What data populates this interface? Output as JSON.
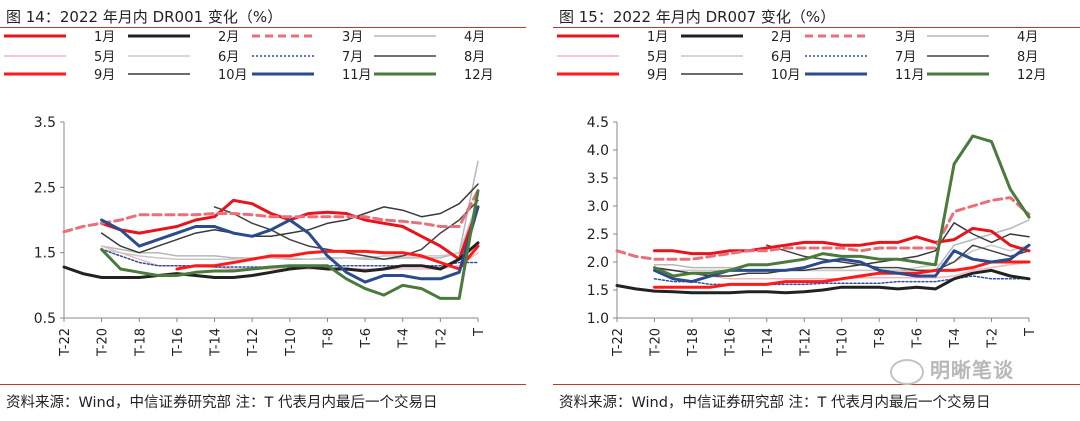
{
  "chart_data": [
    {
      "type": "line",
      "title": "图 14：2022 年月内 DR001 变化（%）",
      "source": "资料来源：Wind，中信证券研究部 注：T 代表月内最后一个交易日",
      "x": [
        "T-22",
        "T-21",
        "T-20",
        "T-19",
        "T-18",
        "T-17",
        "T-16",
        "T-15",
        "T-14",
        "T-13",
        "T-12",
        "T-11",
        "T-10",
        "T-9",
        "T-8",
        "T-7",
        "T-6",
        "T-5",
        "T-4",
        "T-3",
        "T-2",
        "T-1",
        "T"
      ],
      "xticks": [
        "T-22",
        "T-20",
        "T-18",
        "T-16",
        "T-14",
        "T-12",
        "T-10",
        "T-8",
        "T-6",
        "T-4",
        "T-2",
        "T"
      ],
      "ylim": [
        0.5,
        3.5
      ],
      "yticks": [
        "0.5",
        "1.5",
        "2.5",
        "3.5"
      ],
      "legend_placement": "top",
      "series": [
        {
          "name": "1月",
          "color": "#e8141b",
          "width": 3,
          "dash": "",
          "values": [
            null,
            null,
            1.95,
            1.85,
            1.8,
            1.85,
            1.9,
            2.0,
            2.05,
            2.3,
            2.25,
            2.1,
            2.0,
            2.1,
            2.12,
            2.1,
            2.0,
            1.95,
            1.9,
            1.75,
            1.6,
            1.4,
            2.2
          ]
        },
        {
          "name": "2月",
          "color": "#222222",
          "width": 3,
          "dash": "",
          "values": [
            1.28,
            1.18,
            1.12,
            1.12,
            1.12,
            1.15,
            1.18,
            1.15,
            1.12,
            1.12,
            1.15,
            1.2,
            1.25,
            1.28,
            1.25,
            1.25,
            1.22,
            1.25,
            1.3,
            1.3,
            1.25,
            1.4,
            1.65
          ]
        },
        {
          "name": "3月",
          "color": "#e8707a",
          "width": 3,
          "dash": "8,5",
          "values": [
            1.82,
            1.9,
            1.95,
            2.0,
            2.08,
            2.08,
            2.08,
            2.08,
            2.1,
            2.1,
            2.08,
            2.05,
            2.05,
            2.05,
            2.05,
            2.05,
            2.05,
            2.0,
            1.98,
            1.95,
            1.9,
            1.9,
            2.45
          ]
        },
        {
          "name": "4月",
          "color": "#b7b7b7",
          "width": 1.5,
          "dash": "",
          "values": [
            null,
            null,
            1.6,
            1.55,
            1.5,
            1.5,
            1.45,
            1.45,
            1.45,
            1.42,
            1.42,
            1.42,
            1.4,
            1.4,
            1.42,
            1.42,
            1.4,
            1.4,
            1.42,
            1.42,
            1.42,
            1.5,
            2.9
          ]
        },
        {
          "name": "5月",
          "color": "#f4b6bf",
          "width": 1.5,
          "dash": "",
          "values": [
            null,
            null,
            1.6,
            1.5,
            1.4,
            1.3,
            1.3,
            1.28,
            1.28,
            1.25,
            1.25,
            1.25,
            1.25,
            1.25,
            1.25,
            1.25,
            1.25,
            1.25,
            1.25,
            1.25,
            1.25,
            1.3,
            1.5
          ]
        },
        {
          "name": "6月",
          "color": "#c8c8c8",
          "width": 1.5,
          "dash": "",
          "values": [
            null,
            null,
            1.55,
            1.5,
            1.45,
            1.42,
            1.4,
            1.4,
            1.4,
            1.4,
            1.42,
            1.42,
            1.42,
            1.4,
            1.4,
            1.42,
            1.42,
            1.45,
            1.45,
            1.45,
            1.45,
            1.5,
            2.3
          ]
        },
        {
          "name": "7月",
          "color": "#2f4f9f",
          "width": 1.5,
          "dash": "2,2",
          "values": [
            null,
            null,
            1.55,
            1.45,
            1.35,
            1.3,
            1.3,
            1.3,
            1.28,
            1.28,
            1.28,
            1.28,
            1.28,
            1.28,
            1.3,
            1.3,
            1.3,
            1.3,
            1.3,
            1.3,
            1.3,
            1.35,
            1.35
          ]
        },
        {
          "name": "8月",
          "color": "#444444",
          "width": 1.5,
          "dash": "",
          "values": [
            null,
            null,
            null,
            null,
            null,
            null,
            null,
            null,
            2.2,
            2.1,
            1.95,
            1.85,
            1.7,
            1.6,
            1.55,
            1.5,
            1.45,
            1.4,
            1.45,
            1.55,
            1.8,
            2.0,
            2.3
          ]
        },
        {
          "name": "9月",
          "color": "#ff1a1a",
          "width": 3,
          "dash": "",
          "values": [
            null,
            null,
            null,
            null,
            null,
            null,
            1.25,
            1.3,
            1.3,
            1.35,
            1.4,
            1.45,
            1.45,
            1.5,
            1.52,
            1.52,
            1.52,
            1.5,
            1.5,
            1.45,
            1.35,
            1.25,
            1.6
          ]
        },
        {
          "name": "10月",
          "color": "#3a3a3a",
          "width": 1.5,
          "dash": "",
          "values": [
            null,
            null,
            1.8,
            1.6,
            1.5,
            1.6,
            1.7,
            1.8,
            1.85,
            1.8,
            1.75,
            1.75,
            1.8,
            1.85,
            1.95,
            2.0,
            2.1,
            2.2,
            2.15,
            2.05,
            2.1,
            2.25,
            2.55
          ]
        },
        {
          "name": "11月",
          "color": "#2b4b8c",
          "width": 3,
          "dash": "",
          "values": [
            null,
            null,
            2.0,
            1.85,
            1.6,
            1.7,
            1.8,
            1.9,
            1.9,
            1.8,
            1.75,
            1.85,
            2.0,
            1.8,
            1.45,
            1.2,
            1.05,
            1.15,
            1.15,
            1.1,
            1.1,
            1.2,
            2.2
          ]
        },
        {
          "name": "12月",
          "color": "#4a7a3c",
          "width": 3,
          "dash": "",
          "values": [
            null,
            null,
            1.55,
            1.25,
            1.2,
            1.15,
            1.15,
            1.2,
            1.22,
            1.22,
            1.25,
            1.28,
            1.3,
            1.3,
            1.3,
            1.1,
            0.95,
            0.85,
            1.0,
            0.95,
            0.8,
            0.8,
            2.45
          ]
        }
      ]
    },
    {
      "type": "line",
      "title": "图 15：2022 年月内 DR007 变化（%）",
      "source": "资料来源：Wind，中信证券研究部 注：T 代表月内最后一个交易日",
      "x": [
        "T-22",
        "T-21",
        "T-20",
        "T-19",
        "T-18",
        "T-17",
        "T-16",
        "T-15",
        "T-14",
        "T-13",
        "T-12",
        "T-11",
        "T-10",
        "T-9",
        "T-8",
        "T-7",
        "T-6",
        "T-5",
        "T-4",
        "T-3",
        "T-2",
        "T-1",
        "T"
      ],
      "xticks": [
        "T-22",
        "T-20",
        "T-18",
        "T-16",
        "T-14",
        "T-12",
        "T-10",
        "T-8",
        "T-6",
        "T-4",
        "T-2",
        "T"
      ],
      "ylim": [
        1.0,
        4.5
      ],
      "yticks": [
        "1.0",
        "1.5",
        "2.0",
        "2.5",
        "3.0",
        "3.5",
        "4.0",
        "4.5"
      ],
      "legend_placement": "top",
      "series": [
        {
          "name": "1月",
          "color": "#e8141b",
          "width": 3,
          "dash": "",
          "values": [
            null,
            null,
            2.2,
            2.2,
            2.15,
            2.15,
            2.2,
            2.2,
            2.25,
            2.3,
            2.35,
            2.35,
            2.3,
            2.3,
            2.35,
            2.35,
            2.45,
            2.35,
            2.4,
            2.6,
            2.55,
            2.3,
            2.2
          ]
        },
        {
          "name": "2月",
          "color": "#222222",
          "width": 3,
          "dash": "",
          "values": [
            1.58,
            1.52,
            1.48,
            1.47,
            1.45,
            1.45,
            1.45,
            1.47,
            1.47,
            1.45,
            1.47,
            1.5,
            1.55,
            1.55,
            1.55,
            1.52,
            1.55,
            1.52,
            1.7,
            1.8,
            1.85,
            1.75,
            1.7
          ]
        },
        {
          "name": "3月",
          "color": "#e8707a",
          "width": 3,
          "dash": "8,5",
          "values": [
            2.2,
            2.1,
            2.05,
            2.05,
            2.05,
            2.1,
            2.15,
            2.2,
            2.2,
            2.25,
            2.25,
            2.25,
            2.25,
            2.2,
            2.25,
            2.25,
            2.25,
            2.25,
            2.9,
            3.0,
            3.1,
            3.15,
            2.85
          ]
        },
        {
          "name": "4月",
          "color": "#b7b7b7",
          "width": 1.5,
          "dash": "",
          "values": [
            null,
            null,
            1.95,
            1.95,
            1.9,
            1.9,
            1.9,
            1.85,
            1.85,
            1.85,
            1.85,
            1.85,
            1.85,
            1.85,
            1.85,
            1.85,
            1.85,
            1.85,
            2.3,
            2.4,
            2.5,
            2.6,
            2.75
          ]
        },
        {
          "name": "5月",
          "color": "#f4b6bf",
          "width": 1.5,
          "dash": "",
          "values": [
            null,
            null,
            1.9,
            1.85,
            1.8,
            1.75,
            1.7,
            1.7,
            1.7,
            1.7,
            1.7,
            1.7,
            1.7,
            1.72,
            1.72,
            1.72,
            1.72,
            1.72,
            1.75,
            1.85,
            1.9,
            1.95,
            2.0
          ]
        },
        {
          "name": "6月",
          "color": "#c8c8c8",
          "width": 1.5,
          "dash": "",
          "values": [
            null,
            null,
            1.85,
            1.85,
            1.85,
            1.85,
            1.85,
            1.85,
            1.85,
            1.85,
            1.85,
            1.85,
            1.85,
            1.85,
            1.85,
            1.85,
            1.9,
            1.95,
            2.0,
            2.2,
            2.3,
            2.2,
            2.3
          ]
        },
        {
          "name": "7月",
          "color": "#2f4f9f",
          "width": 1.5,
          "dash": "2,2",
          "values": [
            null,
            null,
            1.7,
            1.65,
            1.65,
            1.6,
            1.6,
            1.6,
            1.6,
            1.6,
            1.6,
            1.62,
            1.62,
            1.62,
            1.62,
            1.65,
            1.65,
            1.65,
            1.7,
            1.75,
            1.7,
            1.7,
            1.7
          ]
        },
        {
          "name": "8月",
          "color": "#444444",
          "width": 1.5,
          "dash": "",
          "values": [
            null,
            null,
            null,
            null,
            null,
            null,
            null,
            null,
            2.3,
            2.2,
            2.1,
            2.05,
            2.0,
            1.95,
            1.9,
            1.9,
            1.85,
            1.85,
            2.0,
            2.3,
            2.2,
            2.1,
            2.2
          ]
        },
        {
          "name": "9月",
          "color": "#ff1a1a",
          "width": 3,
          "dash": "",
          "values": [
            null,
            null,
            1.55,
            1.55,
            1.55,
            1.55,
            1.6,
            1.6,
            1.6,
            1.65,
            1.65,
            1.65,
            1.7,
            1.75,
            1.8,
            1.8,
            1.8,
            1.85,
            1.85,
            1.9,
            2.0,
            2.0,
            2.0
          ]
        },
        {
          "name": "10月",
          "color": "#3a3a3a",
          "width": 1.5,
          "dash": "",
          "values": [
            null,
            null,
            1.9,
            1.85,
            1.8,
            1.75,
            1.75,
            1.8,
            1.8,
            1.85,
            1.85,
            1.9,
            1.9,
            1.95,
            2.0,
            2.05,
            2.1,
            2.2,
            2.7,
            2.5,
            2.35,
            2.5,
            2.45
          ]
        },
        {
          "name": "11月",
          "color": "#2b4b8c",
          "width": 3,
          "dash": "",
          "values": [
            null,
            null,
            1.85,
            1.7,
            1.65,
            1.75,
            1.85,
            1.85,
            1.85,
            1.85,
            1.9,
            2.0,
            2.05,
            2.0,
            1.85,
            1.8,
            1.75,
            1.75,
            2.2,
            2.05,
            2.0,
            2.05,
            2.3
          ]
        },
        {
          "name": "12月",
          "color": "#4a7a3c",
          "width": 3,
          "dash": "",
          "values": [
            null,
            null,
            1.9,
            1.75,
            1.8,
            1.8,
            1.85,
            1.95,
            1.95,
            2.0,
            2.05,
            2.15,
            2.1,
            2.1,
            2.05,
            2.05,
            2.0,
            1.95,
            3.75,
            4.25,
            4.15,
            3.3,
            2.8
          ]
        }
      ]
    }
  ],
  "watermark": "明晰笔谈"
}
